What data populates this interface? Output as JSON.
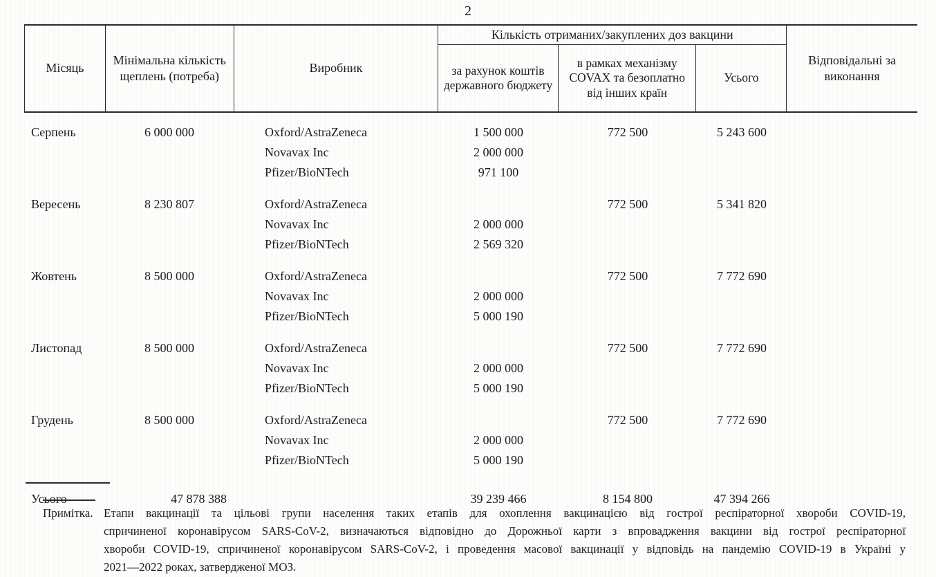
{
  "page": {
    "number": "2"
  },
  "table": {
    "headers": {
      "month": "Місяць",
      "min_count": "Мінімальна кількість щеплень (потреба)",
      "manufacturer": "Виробник",
      "doses_group": "Кількість отриманих/закуплених доз вакцини",
      "budget": "за рахунок коштів державного бюджету",
      "covax": "в рамках механізму COVAX та безоплатно від інших країн",
      "total": "Усього",
      "responsible": "Відповідальні за виконання"
    },
    "rows": [
      {
        "month": "Серпень",
        "min_count": "6 000 000",
        "covax": "772 500",
        "total": "5 243 600",
        "manufacturers": [
          {
            "name": "Oxford/AstraZeneca",
            "budget": "1 500 000"
          },
          {
            "name": "Novavax Inc",
            "budget": "2 000 000"
          },
          {
            "name": "Pfizer/BioNTech",
            "budget": "971 100"
          }
        ]
      },
      {
        "month": "Вересень",
        "min_count": "8 230 807",
        "covax": "772 500",
        "total": "5 341 820",
        "manufacturers": [
          {
            "name": "Oxford/AstraZeneca",
            "budget": ""
          },
          {
            "name": "Novavax Inc",
            "budget": "2 000 000"
          },
          {
            "name": "Pfizer/BioNTech",
            "budget": "2 569 320"
          }
        ]
      },
      {
        "month": "Жовтень",
        "min_count": "8 500 000",
        "covax": "772 500",
        "total": "7 772 690",
        "manufacturers": [
          {
            "name": "Oxford/AstraZeneca",
            "budget": ""
          },
          {
            "name": "Novavax Inc",
            "budget": "2 000 000"
          },
          {
            "name": "Pfizer/BioNTech",
            "budget": "5 000 190"
          }
        ]
      },
      {
        "month": "Листопад",
        "min_count": "8 500 000",
        "covax": "772 500",
        "total": "7 772 690",
        "manufacturers": [
          {
            "name": "Oxford/AstraZeneca",
            "budget": ""
          },
          {
            "name": "Novavax Inc",
            "budget": "2 000 000"
          },
          {
            "name": "Pfizer/BioNTech",
            "budget": "5 000 190"
          }
        ]
      },
      {
        "month": "Грудень",
        "min_count": "8 500 000",
        "covax": "772 500",
        "total": "7 772 690",
        "manufacturers": [
          {
            "name": "Oxford/AstraZeneca",
            "budget": ""
          },
          {
            "name": "Novavax Inc",
            "budget": "2 000 000"
          },
          {
            "name": "Pfizer/BioNTech",
            "budget": "5 000 190"
          }
        ]
      }
    ],
    "total_row": {
      "label": "Усього",
      "min_count": "47 878 388",
      "budget": "39 239 466",
      "covax": "8 154 800",
      "total": "47 394 266"
    }
  },
  "note": {
    "label": "Примітка.",
    "lines": [
      "Етапи вакцинації та цільові групи населення таких етапів для охоплення вакцинацією від гострої респіраторної хвороби COVID-19,",
      "спричиненої коронавірусом SARS-CoV-2, визначаються відповідно до Дорожньої карти з впровадження вакцини від гострої респіраторної",
      "хвороби COVID-19, спричиненої коронавірусом SARS-CoV-2, і проведення масової вакцинації у відповідь на пандемію COVID-19 в Україні у",
      "2021—2022 роках, затвердженої МОЗ."
    ]
  }
}
